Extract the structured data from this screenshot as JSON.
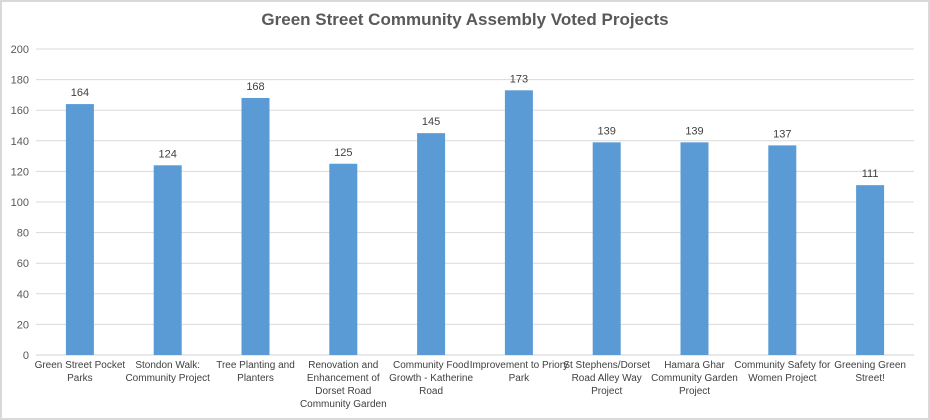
{
  "chart_data": {
    "type": "bar",
    "title": "Green Street Community Assembly Voted Projects",
    "xlabel": "",
    "ylabel": "",
    "ylim": [
      0,
      200
    ],
    "yticks": [
      0,
      20,
      40,
      60,
      80,
      100,
      120,
      140,
      160,
      180,
      200
    ],
    "grid": true,
    "legend": "none",
    "bar_color": "#5b9bd5",
    "categories": [
      "Green Street Pocket Parks",
      "Stondon Walk: Community Project",
      "Tree Planting and Planters",
      "Renovation and Enhancement of Dorset Road Community Garden",
      "Community Food Growth - Katherine Road",
      "Improvement to Priory Park",
      "St Stephens/Dorset Road Alley Way Project",
      "Hamara Ghar Community Garden Project",
      "Community Safety for Women Project",
      "Greening Green Street!"
    ],
    "values": [
      164,
      124,
      168,
      125,
      145,
      173,
      139,
      139,
      137,
      111
    ],
    "data_labels": [
      "164",
      "124",
      "168",
      "125",
      "145",
      "173",
      "139",
      "139",
      "137",
      "111"
    ]
  }
}
